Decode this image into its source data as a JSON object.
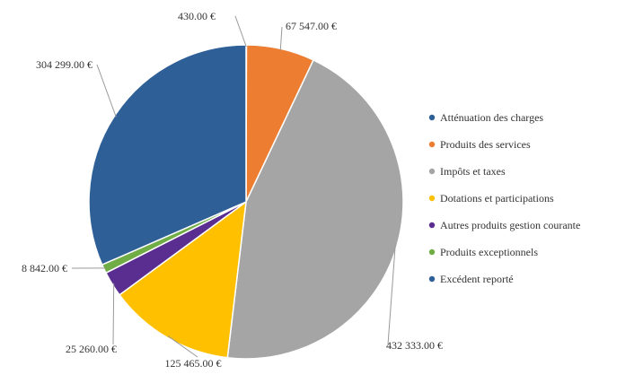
{
  "chart_data": {
    "type": "pie",
    "title": "",
    "start_angle_deg": 0,
    "direction": "clockwise",
    "legend": {
      "position": "right"
    },
    "slices": [
      {
        "label": "Atténuation des charges",
        "value": 430.0,
        "value_label": "430.00 €",
        "color": "#2e5f97"
      },
      {
        "label": "Produits des services",
        "value": 67547.0,
        "value_label": "67 547.00 €",
        "color": "#ed7d31"
      },
      {
        "label": "Impôts et taxes",
        "value": 432333.0,
        "value_label": "432 333.00 €",
        "color": "#a5a5a5"
      },
      {
        "label": "Dotations et participations",
        "value": 125465.0,
        "value_label": "125 465.00 €",
        "color": "#ffc000"
      },
      {
        "label": "Autres produits gestion courante",
        "value": 25260.0,
        "value_label": "25 260.00 €",
        "color": "#5a2d91"
      },
      {
        "label": "Produits exceptionnels",
        "value": 8842.0,
        "value_label": "8 842.00 €",
        "color": "#70ad47"
      },
      {
        "label": "Excédent reporté",
        "value": 304299.0,
        "value_label": "304 299.00 €",
        "color": "#2e5f97"
      }
    ]
  }
}
